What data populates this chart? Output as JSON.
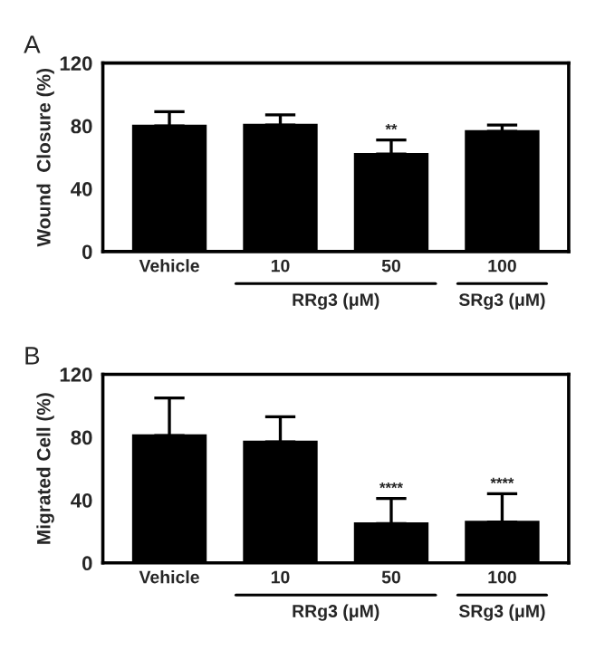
{
  "chart_data": [
    {
      "type": "bar",
      "title": "A",
      "ylabel": "Wound  Closure (%)",
      "categories": [
        "Vehicle",
        "10",
        "50",
        "100"
      ],
      "values": [
        80,
        80.5,
        62,
        76.5
      ],
      "errors": [
        [
          80,
          89
        ],
        [
          80.5,
          87
        ],
        [
          62,
          71
        ],
        [
          76.5,
          80.5
        ]
      ],
      "color": "#000000",
      "ylim": [
        0,
        120
      ],
      "yticks": [
        0,
        40,
        80,
        120
      ],
      "grid": false,
      "legend": false,
      "annotations": [
        {
          "text": "**",
          "x": "50",
          "y": 71
        },
        "RRg3 (μM)",
        "SRg3 (μM)"
      ]
    },
    {
      "type": "bar",
      "title": "B",
      "ylabel": "Migrated Cell (%)",
      "categories": [
        "Vehicle",
        "10",
        "50",
        "100"
      ],
      "values": [
        81,
        77,
        25,
        26
      ],
      "errors": [
        [
          81,
          105
        ],
        [
          77,
          93
        ],
        [
          25,
          41
        ],
        [
          26,
          44
        ]
      ],
      "color": "#000000",
      "ylim": [
        0,
        120
      ],
      "yticks": [
        0,
        40,
        80,
        120
      ],
      "grid": false,
      "legend": false,
      "annotations": [
        {
          "text": "****",
          "x": "50",
          "y": 41
        },
        {
          "text": "****",
          "x": "100",
          "y": 44
        },
        "RRg3 (μM)",
        "SRg3 (μM)"
      ]
    }
  ]
}
